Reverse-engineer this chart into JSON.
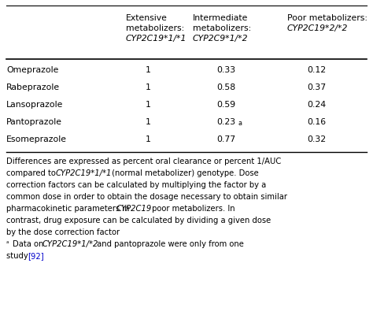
{
  "title": "",
  "col_headers_line1": [
    "Extensive",
    "Intermediate",
    "Poor metabolizers:"
  ],
  "col_headers_line2": [
    "metabolizers:",
    "metabolizers:",
    "CYP2C19*2/*2"
  ],
  "col_headers_line3": [
    "CYP2C19*1/*1",
    "CYP2C9*1/*2",
    ""
  ],
  "col_headers_italic": [
    true,
    true,
    true
  ],
  "row_labels": [
    "Omeprazole",
    "Rabeprazole",
    "Lansoprazole",
    "Pantoprazole",
    "Esomeprazole"
  ],
  "data_col1": [
    "1",
    "1",
    "1",
    "1",
    "1"
  ],
  "data_col2": [
    "0.33",
    "0.58",
    "0.59",
    "0.23",
    "0.77"
  ],
  "data_col2_super": [
    false,
    false,
    false,
    true,
    false
  ],
  "data_col3": [
    "0.12",
    "0.37",
    "0.24",
    "0.16",
    "0.32"
  ],
  "bg_color": "#ffffff",
  "text_color": "#000000",
  "line_color": "#000000",
  "blue_color": "#0000cc",
  "font_size": 7.8,
  "fn_font_size": 7.2
}
